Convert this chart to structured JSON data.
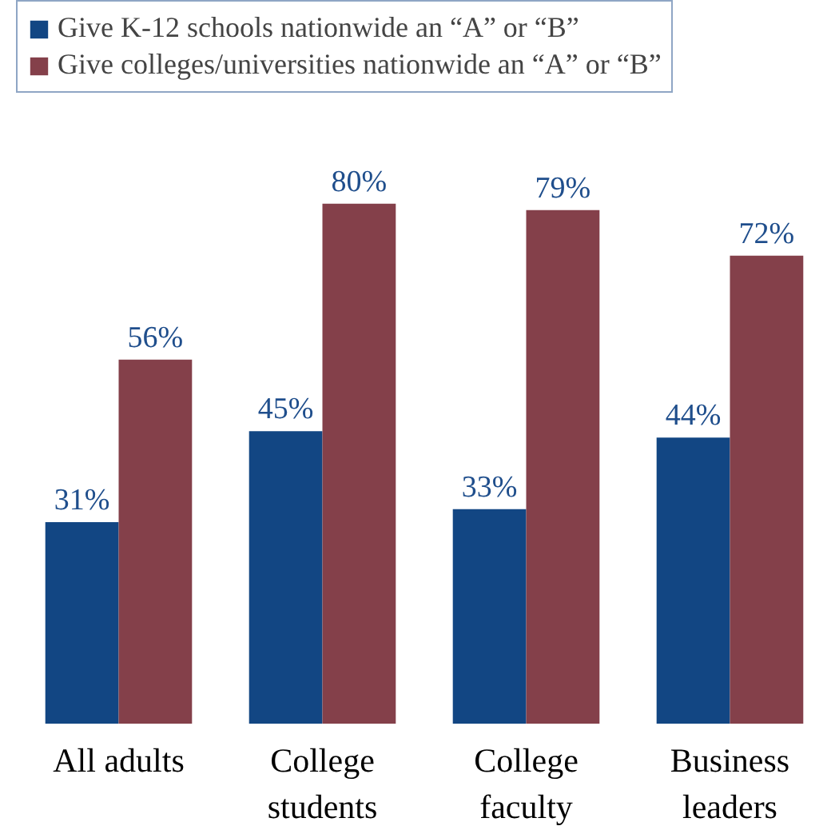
{
  "chart_data": {
    "type": "bar",
    "categories": [
      "All adults",
      "College students",
      "College faculty",
      "Business leaders"
    ],
    "series": [
      {
        "name": "Give K-12 schools nationwide an “A” or “B”",
        "color": "#124683",
        "values": [
          31,
          45,
          33,
          44
        ],
        "value_labels": [
          "31%",
          "45%",
          "33%",
          "44%"
        ]
      },
      {
        "name": "Give colleges/universities nationwide an “A” or “B”",
        "color": "#84404a",
        "values": [
          56,
          80,
          79,
          72
        ],
        "value_labels": [
          "56%",
          "80%",
          "79%",
          "72%"
        ]
      }
    ],
    "legend": "top left"
  }
}
